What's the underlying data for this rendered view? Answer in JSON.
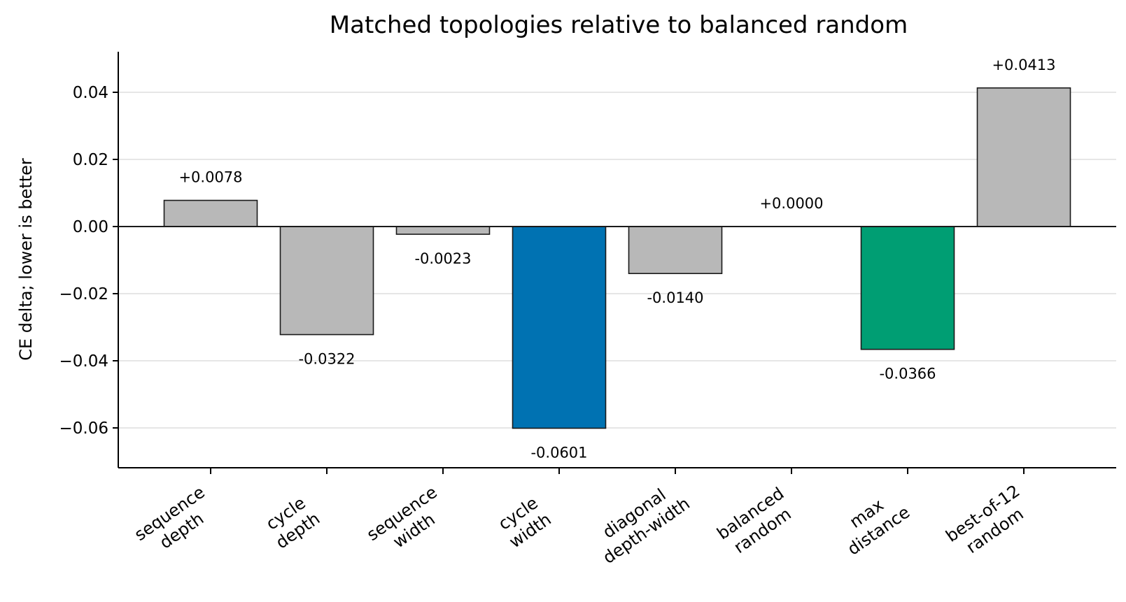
{
  "chart_data": {
    "type": "bar",
    "title": "Matched topologies relative to balanced random",
    "xlabel": "",
    "ylabel": "CE delta; lower is better",
    "ylim": [
      -0.0725,
      0.0525
    ],
    "yticks": [
      0.04,
      0.02,
      0.0,
      -0.02,
      -0.04,
      -0.06
    ],
    "ytick_labels": [
      "0.04",
      "0.02",
      "0.00",
      "−0.02",
      "−0.04",
      "−0.06"
    ],
    "grid": true,
    "categories": [
      [
        "sequence",
        "depth"
      ],
      [
        "cycle",
        "depth"
      ],
      [
        "sequence",
        "width"
      ],
      [
        "cycle",
        "width"
      ],
      [
        "diagonal",
        "depth-width"
      ],
      [
        "balanced",
        "random"
      ],
      [
        "max",
        "distance"
      ],
      [
        "best-of-12",
        "random"
      ]
    ],
    "values": [
      0.0078,
      -0.0322,
      -0.0023,
      -0.0601,
      -0.014,
      0.0,
      -0.0366,
      0.0413
    ],
    "value_labels": [
      "+0.0078",
      "-0.0322",
      "-0.0023",
      "-0.0601",
      "-0.0140",
      "+0.0000",
      "-0.0366",
      "+0.0413"
    ],
    "bar_colors": [
      "#b8b8b8",
      "#b8b8b8",
      "#b8b8b8",
      "#0072b2",
      "#b8b8b8",
      "#b8b8b8",
      "#009e73",
      "#b8b8b8"
    ],
    "edge_color": "#1a1a1a",
    "grid_color": "#e6e6e6"
  }
}
